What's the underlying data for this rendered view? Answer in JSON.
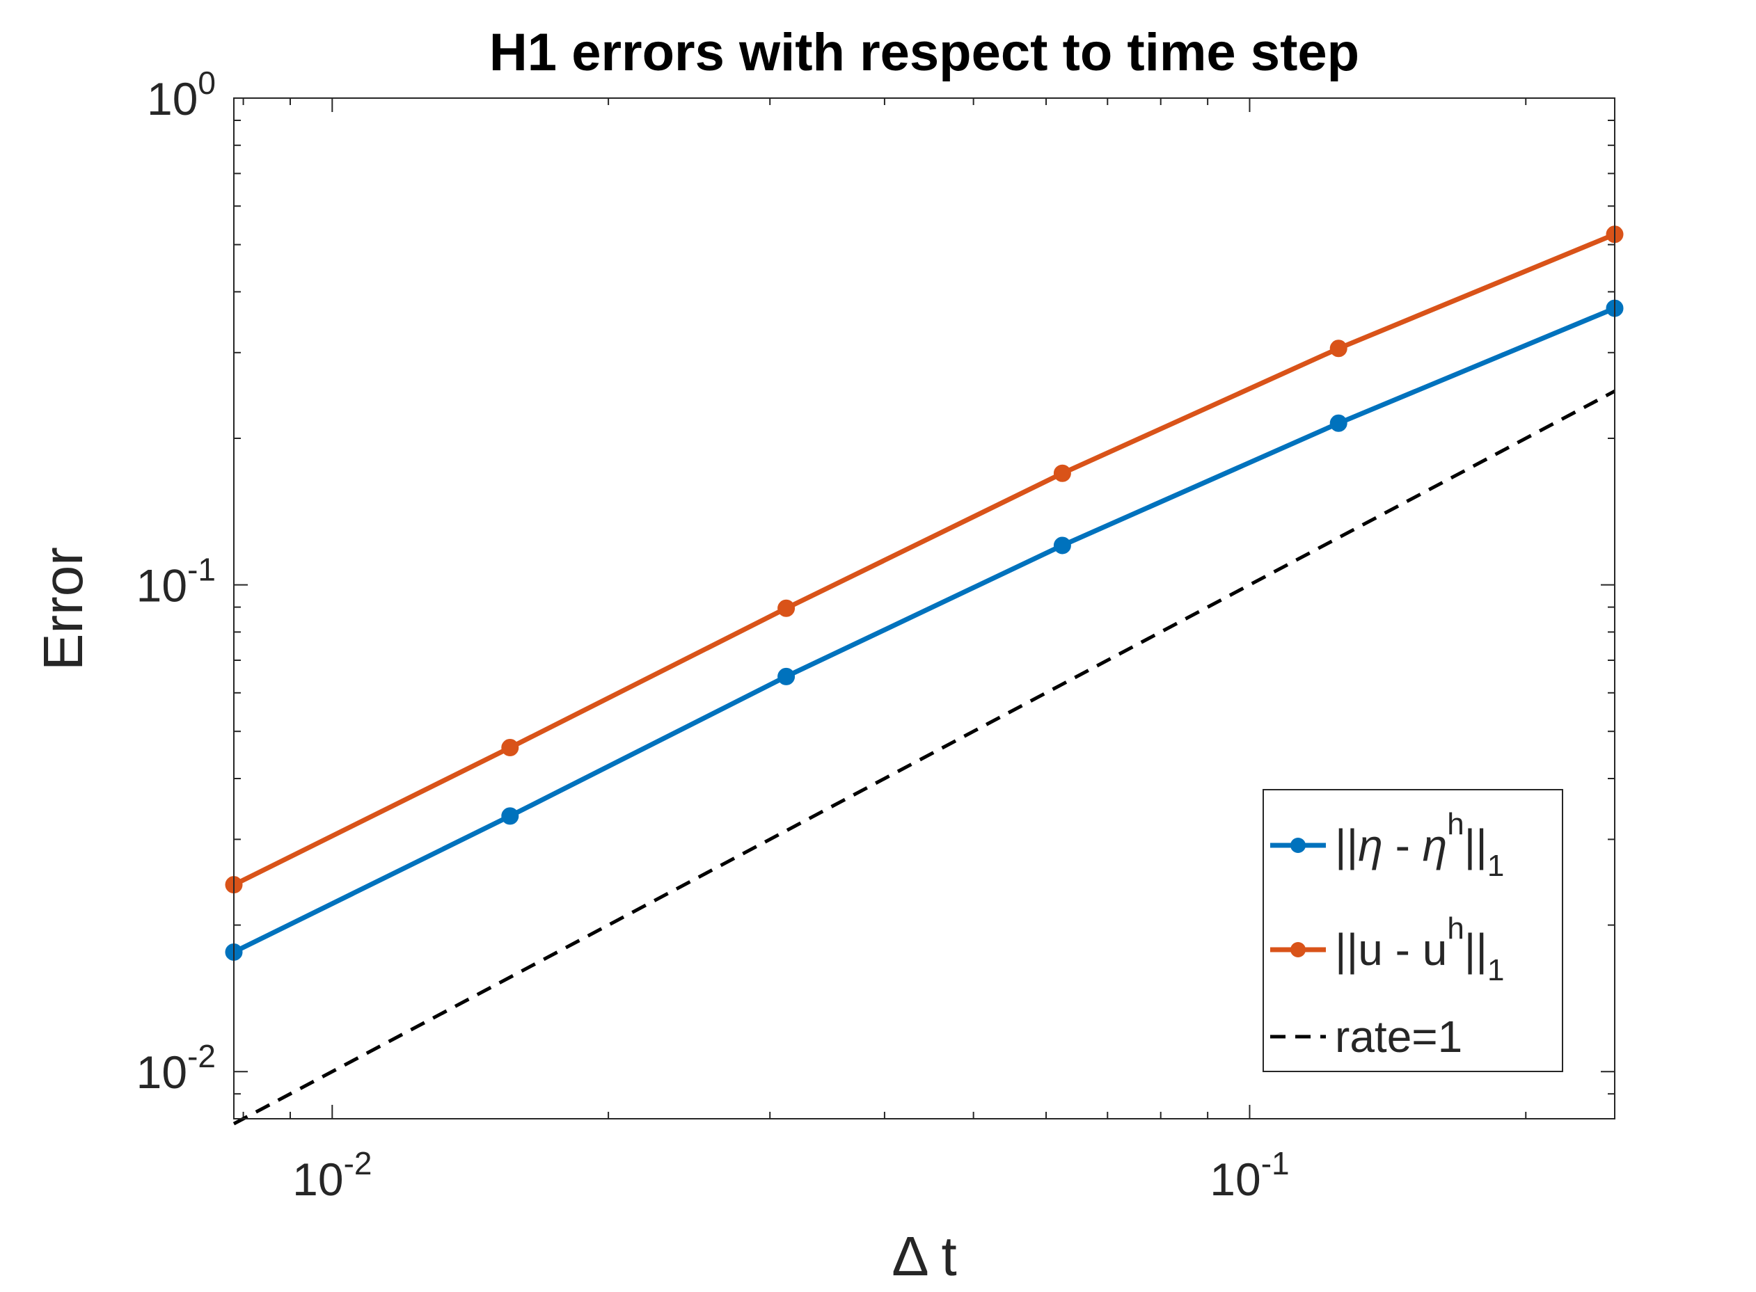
{
  "chart_data": {
    "type": "line",
    "title": "H1 errors with respect to time step",
    "xlabel": "Δ t",
    "ylabel": "Error",
    "xscale": "log",
    "yscale": "log",
    "xlim": [
      0.0078125,
      0.25
    ],
    "ylim": [
      0.008,
      1.0
    ],
    "xticks": [
      {
        "base": "10",
        "exp": "-2",
        "value": 0.01
      },
      {
        "base": "10",
        "exp": "-1",
        "value": 0.1
      }
    ],
    "yticks": [
      {
        "base": "10",
        "exp": "-2",
        "value": 0.01
      },
      {
        "base": "10",
        "exp": "-1",
        "value": 0.1
      },
      {
        "base": "10",
        "exp": "0",
        "value": 1
      }
    ],
    "x": [
      0.0078125,
      0.015625,
      0.03125,
      0.0625,
      0.125,
      0.25
    ],
    "series": [
      {
        "name": "||η - η^h||_1",
        "legend": {
          "prefix": "||",
          "sym": "η",
          "mid": " - ",
          "sym2": "η",
          "sup": "h",
          "end": "||",
          "sub": "1"
        },
        "color": "#0072BD",
        "marker": "circle",
        "style": "solid",
        "values": [
          0.0176,
          0.0335,
          0.0648,
          0.1205,
          0.2148,
          0.37
        ]
      },
      {
        "name": "||u - u^h||_1",
        "legend": {
          "prefix": "||",
          "sym": "u",
          "mid": " - ",
          "sym2": "u",
          "sup": "h",
          "end": "||",
          "sub": "1"
        },
        "color": "#D95319",
        "marker": "circle",
        "style": "solid",
        "values": [
          0.0242,
          0.0463,
          0.0895,
          0.1695,
          0.306,
          0.525
        ]
      },
      {
        "name": "rate=1",
        "color": "#000000",
        "marker": "none",
        "style": "dashed",
        "x": [
          0.0078125,
          0.25
        ],
        "values": [
          0.0078125,
          0.25
        ]
      }
    ],
    "legend_position": "bottom-right",
    "grid": false
  }
}
